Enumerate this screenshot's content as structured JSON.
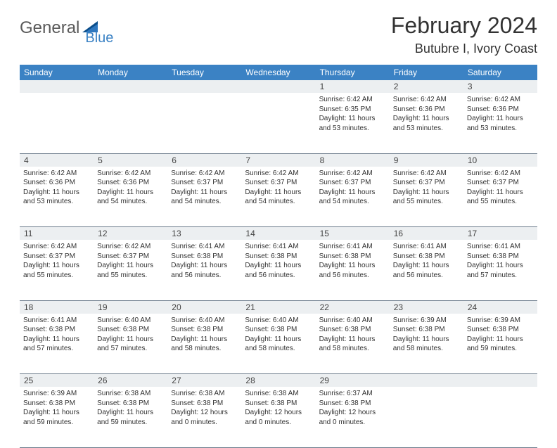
{
  "logo": {
    "text1": "General",
    "text2": "Blue"
  },
  "title": "February 2024",
  "location": "Butubre I, Ivory Coast",
  "colors": {
    "header_bg": "#3b82c4",
    "header_text": "#ffffff",
    "daynum_bg": "#eceff1",
    "border": "#6a7a8a",
    "logo_gray": "#5a5a5a",
    "logo_blue": "#3b82c4"
  },
  "day_headers": [
    "Sunday",
    "Monday",
    "Tuesday",
    "Wednesday",
    "Thursday",
    "Friday",
    "Saturday"
  ],
  "weeks": [
    {
      "nums": [
        "",
        "",
        "",
        "",
        "1",
        "2",
        "3"
      ],
      "cells": [
        "",
        "",
        "",
        "",
        "Sunrise: 6:42 AM\nSunset: 6:35 PM\nDaylight: 11 hours and 53 minutes.",
        "Sunrise: 6:42 AM\nSunset: 6:36 PM\nDaylight: 11 hours and 53 minutes.",
        "Sunrise: 6:42 AM\nSunset: 6:36 PM\nDaylight: 11 hours and 53 minutes."
      ]
    },
    {
      "nums": [
        "4",
        "5",
        "6",
        "7",
        "8",
        "9",
        "10"
      ],
      "cells": [
        "Sunrise: 6:42 AM\nSunset: 6:36 PM\nDaylight: 11 hours and 53 minutes.",
        "Sunrise: 6:42 AM\nSunset: 6:36 PM\nDaylight: 11 hours and 54 minutes.",
        "Sunrise: 6:42 AM\nSunset: 6:37 PM\nDaylight: 11 hours and 54 minutes.",
        "Sunrise: 6:42 AM\nSunset: 6:37 PM\nDaylight: 11 hours and 54 minutes.",
        "Sunrise: 6:42 AM\nSunset: 6:37 PM\nDaylight: 11 hours and 54 minutes.",
        "Sunrise: 6:42 AM\nSunset: 6:37 PM\nDaylight: 11 hours and 55 minutes.",
        "Sunrise: 6:42 AM\nSunset: 6:37 PM\nDaylight: 11 hours and 55 minutes."
      ]
    },
    {
      "nums": [
        "11",
        "12",
        "13",
        "14",
        "15",
        "16",
        "17"
      ],
      "cells": [
        "Sunrise: 6:42 AM\nSunset: 6:37 PM\nDaylight: 11 hours and 55 minutes.",
        "Sunrise: 6:42 AM\nSunset: 6:37 PM\nDaylight: 11 hours and 55 minutes.",
        "Sunrise: 6:41 AM\nSunset: 6:38 PM\nDaylight: 11 hours and 56 minutes.",
        "Sunrise: 6:41 AM\nSunset: 6:38 PM\nDaylight: 11 hours and 56 minutes.",
        "Sunrise: 6:41 AM\nSunset: 6:38 PM\nDaylight: 11 hours and 56 minutes.",
        "Sunrise: 6:41 AM\nSunset: 6:38 PM\nDaylight: 11 hours and 56 minutes.",
        "Sunrise: 6:41 AM\nSunset: 6:38 PM\nDaylight: 11 hours and 57 minutes."
      ]
    },
    {
      "nums": [
        "18",
        "19",
        "20",
        "21",
        "22",
        "23",
        "24"
      ],
      "cells": [
        "Sunrise: 6:41 AM\nSunset: 6:38 PM\nDaylight: 11 hours and 57 minutes.",
        "Sunrise: 6:40 AM\nSunset: 6:38 PM\nDaylight: 11 hours and 57 minutes.",
        "Sunrise: 6:40 AM\nSunset: 6:38 PM\nDaylight: 11 hours and 58 minutes.",
        "Sunrise: 6:40 AM\nSunset: 6:38 PM\nDaylight: 11 hours and 58 minutes.",
        "Sunrise: 6:40 AM\nSunset: 6:38 PM\nDaylight: 11 hours and 58 minutes.",
        "Sunrise: 6:39 AM\nSunset: 6:38 PM\nDaylight: 11 hours and 58 minutes.",
        "Sunrise: 6:39 AM\nSunset: 6:38 PM\nDaylight: 11 hours and 59 minutes."
      ]
    },
    {
      "nums": [
        "25",
        "26",
        "27",
        "28",
        "29",
        "",
        ""
      ],
      "cells": [
        "Sunrise: 6:39 AM\nSunset: 6:38 PM\nDaylight: 11 hours and 59 minutes.",
        "Sunrise: 6:38 AM\nSunset: 6:38 PM\nDaylight: 11 hours and 59 minutes.",
        "Sunrise: 6:38 AM\nSunset: 6:38 PM\nDaylight: 12 hours and 0 minutes.",
        "Sunrise: 6:38 AM\nSunset: 6:38 PM\nDaylight: 12 hours and 0 minutes.",
        "Sunrise: 6:37 AM\nSunset: 6:38 PM\nDaylight: 12 hours and 0 minutes.",
        "",
        ""
      ]
    }
  ]
}
